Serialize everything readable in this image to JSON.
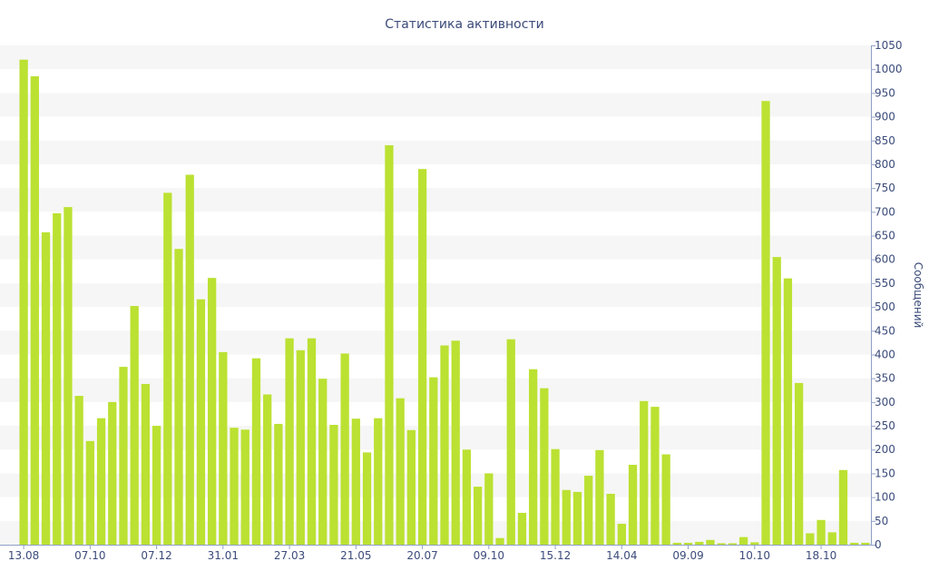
{
  "chart_data": {
    "type": "bar",
    "title": "Статистика активности",
    "ylabel": "Сообщений",
    "ylim": [
      0,
      1050
    ],
    "y_ticks": [
      0,
      50,
      100,
      150,
      200,
      250,
      300,
      350,
      400,
      450,
      500,
      550,
      600,
      650,
      700,
      750,
      800,
      850,
      900,
      950,
      1000,
      1050
    ],
    "y_axis_position": "right",
    "x_ticks": [
      {
        "index": 0,
        "label": "13.08"
      },
      {
        "index": 6,
        "label": "07.10"
      },
      {
        "index": 12,
        "label": "07.12"
      },
      {
        "index": 18,
        "label": "31.01"
      },
      {
        "index": 24,
        "label": "27.03"
      },
      {
        "index": 30,
        "label": "21.05"
      },
      {
        "index": 36,
        "label": "20.07"
      },
      {
        "index": 42,
        "label": "09.10"
      },
      {
        "index": 48,
        "label": "15.12"
      },
      {
        "index": 54,
        "label": "14.04"
      },
      {
        "index": 60,
        "label": "09.09"
      },
      {
        "index": 66,
        "label": "10.10"
      },
      {
        "index": 72,
        "label": "18.10"
      }
    ],
    "values": [
      1020,
      985,
      657,
      697,
      710,
      313,
      218,
      266,
      300,
      374,
      502,
      338,
      250,
      740,
      622,
      778,
      516,
      561,
      405,
      246,
      242,
      392,
      316,
      254,
      434,
      409,
      434,
      349,
      252,
      402,
      265,
      194,
      266,
      840,
      308,
      241,
      790,
      352,
      419,
      429,
      200,
      122,
      150,
      14,
      432,
      67,
      369,
      329,
      201,
      115,
      111,
      145,
      199,
      107,
      44,
      168,
      302,
      290,
      190,
      4,
      4,
      6,
      10,
      3,
      3,
      16,
      5,
      933,
      605,
      560,
      340,
      24,
      52,
      26,
      157,
      4,
      4
    ],
    "grid": true,
    "legend": "none",
    "colors": {
      "bar": "#bbe132",
      "band": "#f6f6f6",
      "text": "#3b4b7a",
      "axis": "#8fa0c6"
    }
  }
}
